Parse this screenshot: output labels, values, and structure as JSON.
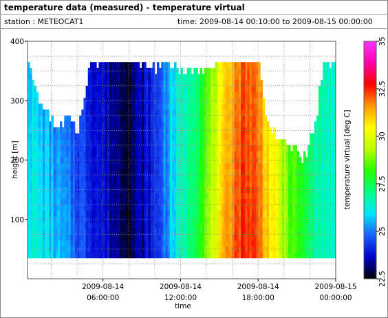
{
  "header": {
    "title": "temperature data (measured) - temperature virtual",
    "station": "station : METEOCAT1",
    "time_range": "time: 2009-08-14 00:10:00 to 2009-08-15 00:00:00"
  },
  "chart_data": {
    "type": "heatmap",
    "title": "temperature data (measured) - temperature virtual",
    "xlabel": "time",
    "ylabel": "height [m]",
    "colorbar_label": "temperature virtual [deg C]",
    "xlim": [
      "2009-08-14 00:10:00",
      "2009-08-15 00:00:00"
    ],
    "ylim": [
      0,
      400
    ],
    "y_ticks": [
      "100",
      "200",
      "300",
      "400"
    ],
    "y_tick_values": [
      100,
      200,
      300,
      400
    ],
    "x_ticks": [
      {
        "line1": "2009-08-14",
        "line2": "06:00:00",
        "hour": 6
      },
      {
        "line1": "2009-08-14",
        "line2": "12:00:00",
        "hour": 12
      },
      {
        "line1": "2009-08-14",
        "line2": "18:00:00",
        "hour": 18
      },
      {
        "line1": "2009-08-15",
        "line2": "00:00:00",
        "hour": 24
      }
    ],
    "colorbar_range": [
      22.5,
      35
    ],
    "colorbar_ticks": [
      "22.5",
      "25",
      "27.5",
      "30",
      "32.5",
      "35"
    ],
    "colorbar_tick_values": [
      22.5,
      25,
      27.5,
      30,
      32.5,
      35
    ],
    "height_range": [
      35,
      365
    ],
    "height_step": 10,
    "grid": true,
    "colormap": [
      "#000000",
      "#0000cc",
      "#1a5cff",
      "#00e6ff",
      "#00ff88",
      "#22ff00",
      "#bbff00",
      "#ffff00",
      "#ff9900",
      "#ff0000",
      "#ff00aa",
      "#ff33ff"
    ],
    "profile_hours": [
      0.2,
      1.5,
      3,
      4.5,
      5.5,
      7,
      8,
      9,
      10,
      11,
      12,
      13,
      14,
      15,
      16,
      17,
      18,
      19,
      20,
      21,
      22,
      23,
      24
    ],
    "profile_surface": [
      26.4,
      26.0,
      25.2,
      24.5,
      24.0,
      23.3,
      23.0,
      23.4,
      24.1,
      25.4,
      26.5,
      27.8,
      29.0,
      30.6,
      32.2,
      32.6,
      32.0,
      30.6,
      29.0,
      28.0,
      27.2,
      26.6,
      26.3
    ],
    "profile_top": [
      25.8,
      25.3,
      24.6,
      24.2,
      23.8,
      23.2,
      23.1,
      23.5,
      24.3,
      25.6,
      26.4,
      27.2,
      28.4,
      30.0,
      31.6,
      32.2,
      31.6,
      30.2,
      29.0,
      28.0,
      27.2,
      26.6,
      26.3
    ],
    "top_hours": [
      0.2,
      1.0,
      1.6,
      2.4,
      3.2,
      4.0,
      5.0,
      6.0,
      7.0,
      8.0,
      9.0,
      10.0,
      11.0,
      12.0,
      13.0,
      14.0,
      15.0,
      16.0,
      17.0,
      18.0,
      18.5,
      19.2,
      20.0,
      20.8,
      21.5,
      22.0,
      22.5,
      23.0,
      24.0
    ],
    "top_heights": [
      360,
      300,
      270,
      250,
      270,
      240,
      360,
      360,
      365,
      365,
      360,
      350,
      355,
      350,
      345,
      350,
      360,
      365,
      365,
      365,
      270,
      240,
      230,
      215,
      200,
      230,
      280,
      360,
      360
    ]
  }
}
